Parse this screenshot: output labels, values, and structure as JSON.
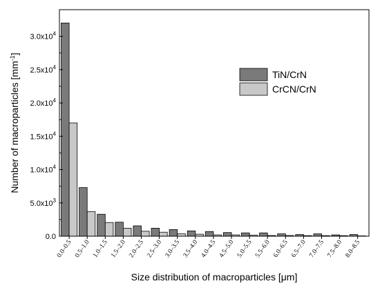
{
  "chart_data": {
    "type": "bar",
    "xlabel_prefix": "Size distribution of macroparticles [",
    "xlabel_unit": "μm",
    "xlabel_suffix": "]",
    "ylabel_prefix": "Number of macroparticles [mm",
    "ylabel_exp": "-1",
    "ylabel_suffix": "]",
    "ylim": [
      0,
      34000
    ],
    "grid": false,
    "legend_position": "top-right",
    "yticks": [
      {
        "value": 0,
        "mantissa": "0.0",
        "exp": ""
      },
      {
        "value": 5000,
        "mantissa": "5.0x10",
        "exp": "3"
      },
      {
        "value": 10000,
        "mantissa": "1.0x10",
        "exp": "4"
      },
      {
        "value": 15000,
        "mantissa": "1.5x10",
        "exp": "4"
      },
      {
        "value": 20000,
        "mantissa": "2.0x10",
        "exp": "4"
      },
      {
        "value": 25000,
        "mantissa": "2.5x10",
        "exp": "4"
      },
      {
        "value": 30000,
        "mantissa": "3.0x10",
        "exp": "4"
      }
    ],
    "categories": [
      "0.0–0.5",
      "0.5–1.0",
      "1.0–1.5",
      "1.5–2.0",
      "2.0–2.5",
      "2.5–3.0",
      "3.0–3.5",
      "3.5–4.0",
      "4.0–4.5",
      "4.5–5.0",
      "5.0–5.5",
      "5.5–6.0",
      "6.0–6.5",
      "6.5–7.0",
      "7.0–7.5",
      "7.5–8.0",
      "8.0–8.5"
    ],
    "series": [
      {
        "name": "TiN/CrN",
        "color": "#7a7a7a",
        "values": [
          32000,
          7300,
          3300,
          2100,
          1550,
          1200,
          1000,
          800,
          700,
          550,
          500,
          500,
          350,
          250,
          350,
          200,
          250
        ]
      },
      {
        "name": "CrCN/CrN",
        "color": "#c8c8c8",
        "values": [
          17000,
          3700,
          2050,
          1200,
          750,
          600,
          350,
          300,
          200,
          200,
          150,
          100,
          100,
          80,
          80,
          80,
          50
        ]
      }
    ]
  }
}
